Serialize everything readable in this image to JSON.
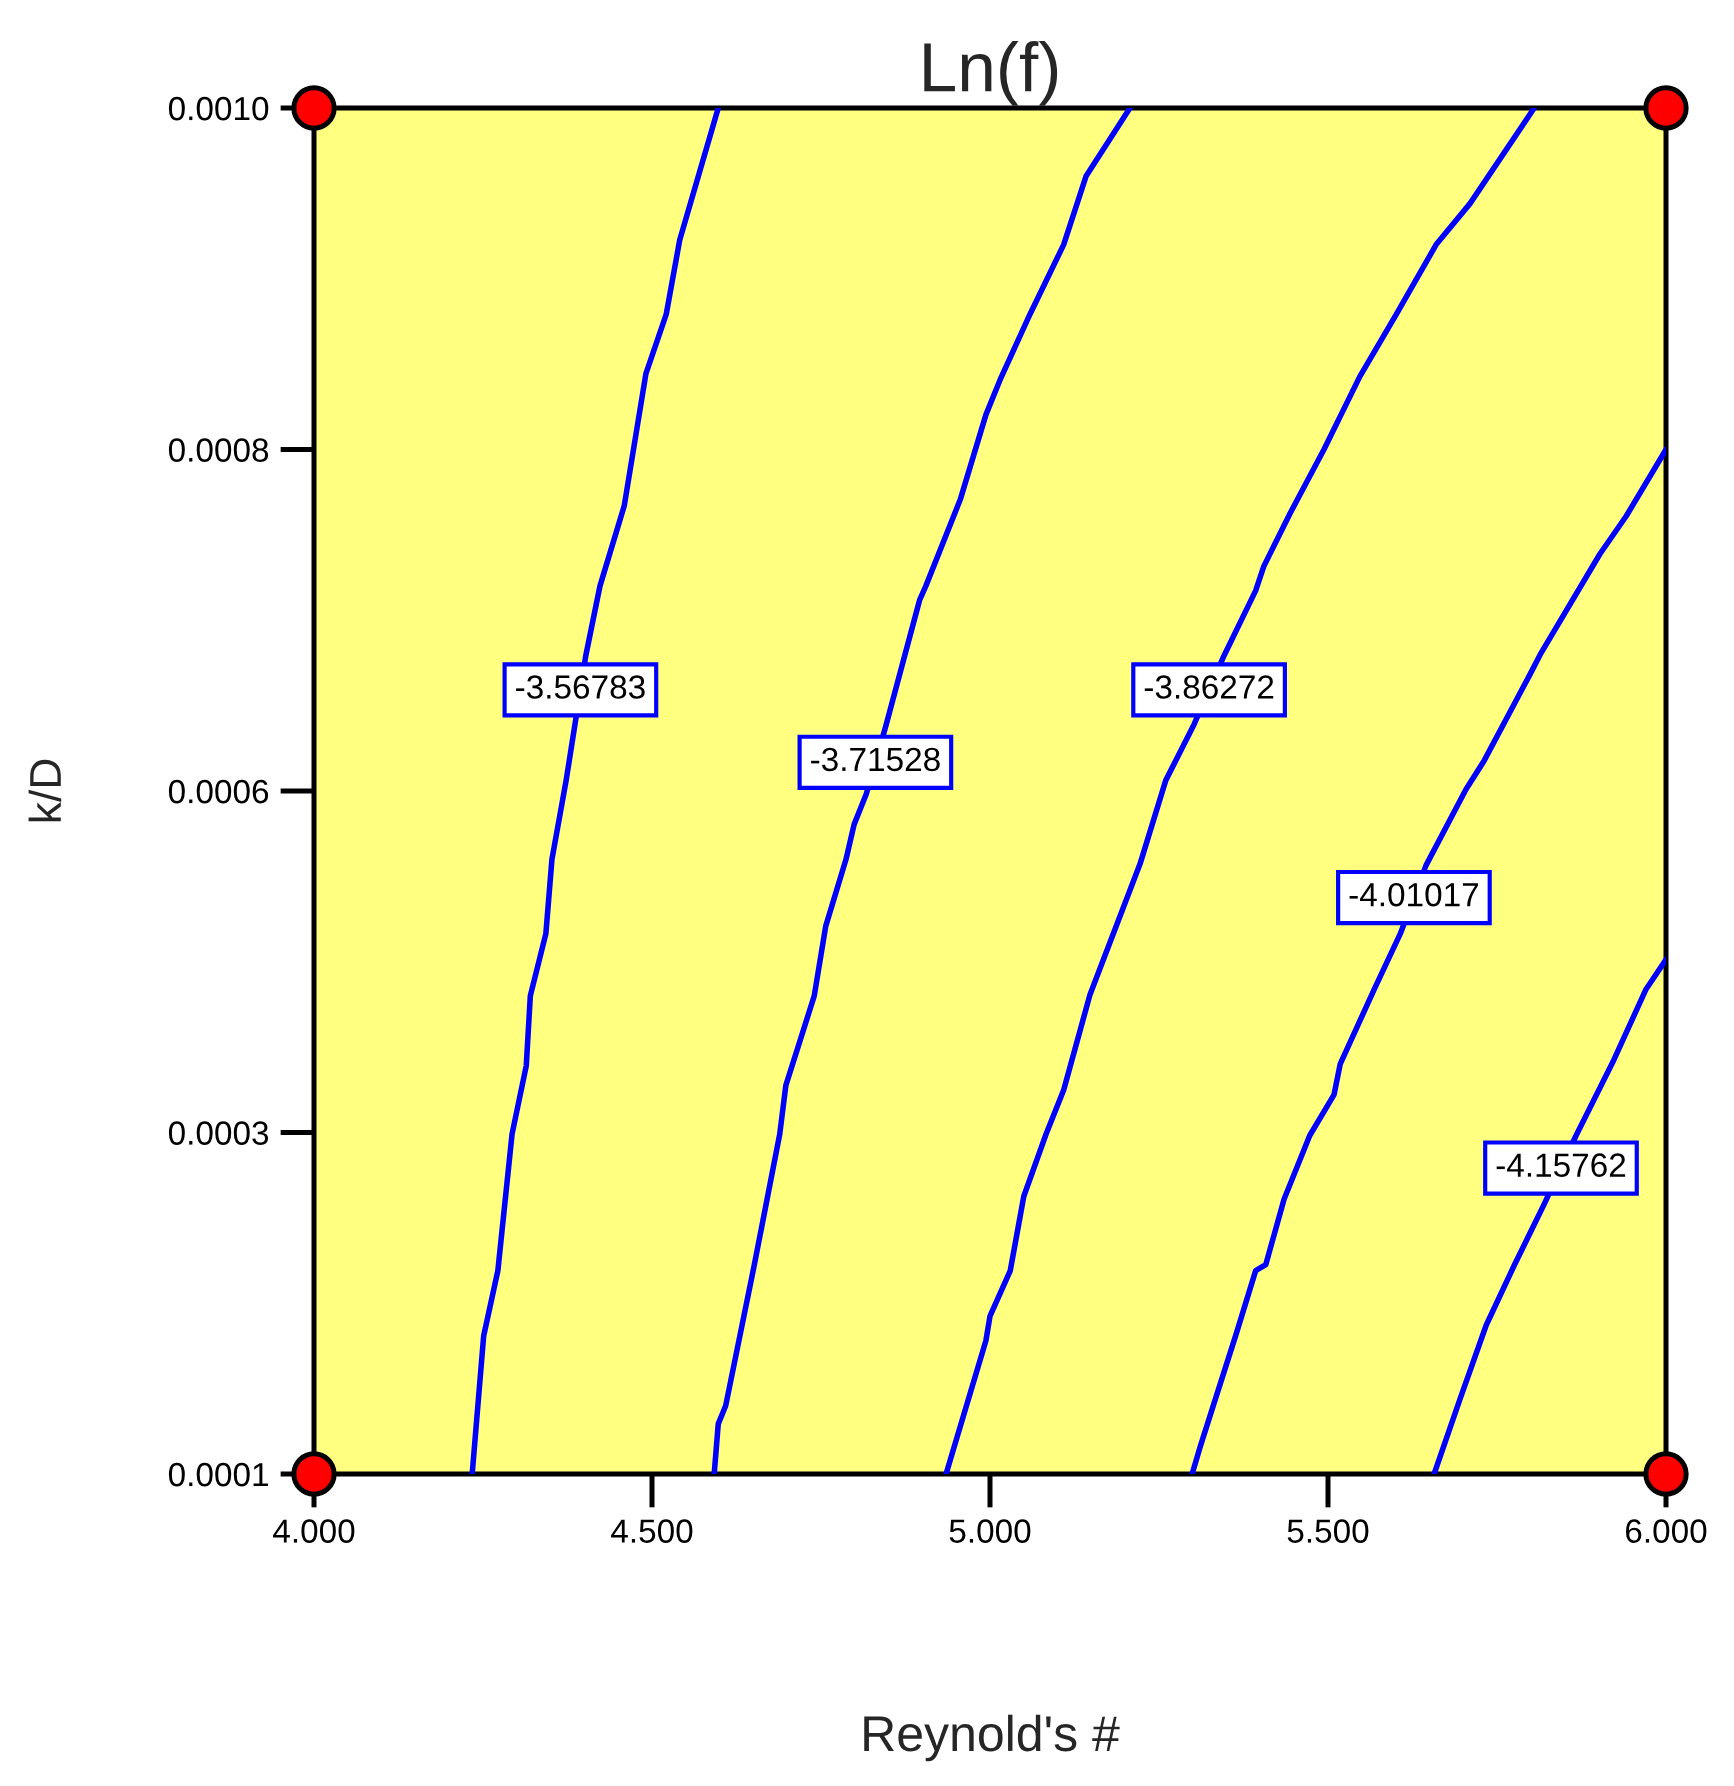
{
  "chart_data": {
    "type": "line",
    "title": "Ln(f)",
    "xlabel": "Reynold's #",
    "ylabel": "k/D",
    "xlim": [
      4,
      6
    ],
    "ylim": [
      0.0001,
      0.001
    ],
    "xticks": [
      {
        "value": 4,
        "label": "4.000"
      },
      {
        "value": 4.5,
        "label": "4.500"
      },
      {
        "value": 5,
        "label": "5.000"
      },
      {
        "value": 5.5,
        "label": "5.500"
      },
      {
        "value": 6,
        "label": "6.000"
      }
    ],
    "yticks": [
      0.0001,
      {
        "value": 0.000325,
        "label": "0.0003"
      },
      {
        "value": 0.00055,
        "label": "0.0006"
      },
      {
        "value": 0.000775,
        "label": "0.0008"
      },
      {
        "value": 0.001,
        "label": "0.0010"
      }
    ],
    "series": [
      {
        "name": "-3.56783",
        "color": "#0000ff",
        "x": [
          4.598,
          4.541,
          4.521,
          4.491,
          4.459,
          4.423,
          4.402,
          4.373,
          4.352,
          4.343,
          4.32,
          4.314,
          4.293,
          4.272,
          4.251,
          4.234
        ],
        "values": [
          0.001,
          0.000913,
          0.000864,
          0.000825,
          0.000738,
          0.000685,
          0.000639,
          0.000557,
          0.000505,
          0.000456,
          0.000415,
          0.000369,
          0.000324,
          0.000234,
          0.000191,
          0.0001
        ]
      },
      {
        "name": "-3.71528",
        "color": "#0000ff",
        "x": [
          5.207,
          5.142,
          5.109,
          5.059,
          5.015,
          4.994,
          4.956,
          4.905,
          4.896,
          4.846,
          4.817,
          4.799,
          4.787,
          4.757,
          4.74,
          4.698,
          4.689,
          4.651,
          4.609,
          4.598,
          4.592
        ],
        "values": [
          0.001,
          0.000955,
          0.00091,
          0.000864,
          0.000821,
          0.000798,
          0.000742,
          0.000685,
          0.000676,
          0.000593,
          0.000548,
          0.000528,
          0.000505,
          0.000461,
          0.000415,
          0.000356,
          0.000324,
          0.000237,
          0.000145,
          0.000133,
          0.0001
        ]
      },
      {
        "name": "-3.86272",
        "color": "#0000ff",
        "x": [
          5.805,
          5.71,
          5.66,
          5.601,
          5.547,
          5.494,
          5.444,
          5.405,
          5.393,
          5.346,
          5.302,
          5.26,
          5.222,
          5.148,
          5.109,
          5.083,
          5.05,
          5.03,
          5.0,
          4.994,
          4.935
        ],
        "values": [
          0.001,
          0.000937,
          0.00091,
          0.000864,
          0.000823,
          0.000775,
          0.000733,
          0.000698,
          0.000682,
          0.000639,
          0.000594,
          0.000557,
          0.000502,
          0.000416,
          0.000353,
          0.000324,
          0.000283,
          0.000234,
          0.000204,
          0.000188,
          0.0001
        ]
      },
      {
        "name": "-4.01017",
        "color": "#0000ff",
        "x": [
          6.0,
          5.941,
          5.902,
          5.814,
          5.799,
          5.731,
          5.704,
          5.645,
          5.607,
          5.568,
          5.518,
          5.509,
          5.473,
          5.435,
          5.408,
          5.393,
          5.364,
          5.331,
          5.311,
          5.299
        ],
        "values": [
          0.000775,
          0.000731,
          0.000706,
          0.00064,
          0.000627,
          0.00057,
          0.000551,
          0.000501,
          0.000456,
          0.000419,
          0.00037,
          0.00035,
          0.000323,
          0.000281,
          0.000238,
          0.000234,
          0.000192,
          0.000146,
          0.000118,
          0.0001
        ]
      },
      {
        "name": "-4.15762",
        "color": "#0000ff",
        "x": [
          6.0,
          5.97,
          5.923,
          5.867,
          5.82,
          5.775,
          5.734,
          5.695,
          5.657
        ],
        "values": [
          0.000439,
          0.000419,
          0.000373,
          0.000323,
          0.000278,
          0.000237,
          0.000198,
          0.000149,
          0.0001
        ]
      },
      {
        "type": "scatter",
        "color": "#ff0000",
        "marker": "circle",
        "x": [
          4,
          6,
          6,
          4
        ],
        "values": [
          0.001,
          0.001,
          0.0001,
          0.0001
        ]
      }
    ]
  }
}
